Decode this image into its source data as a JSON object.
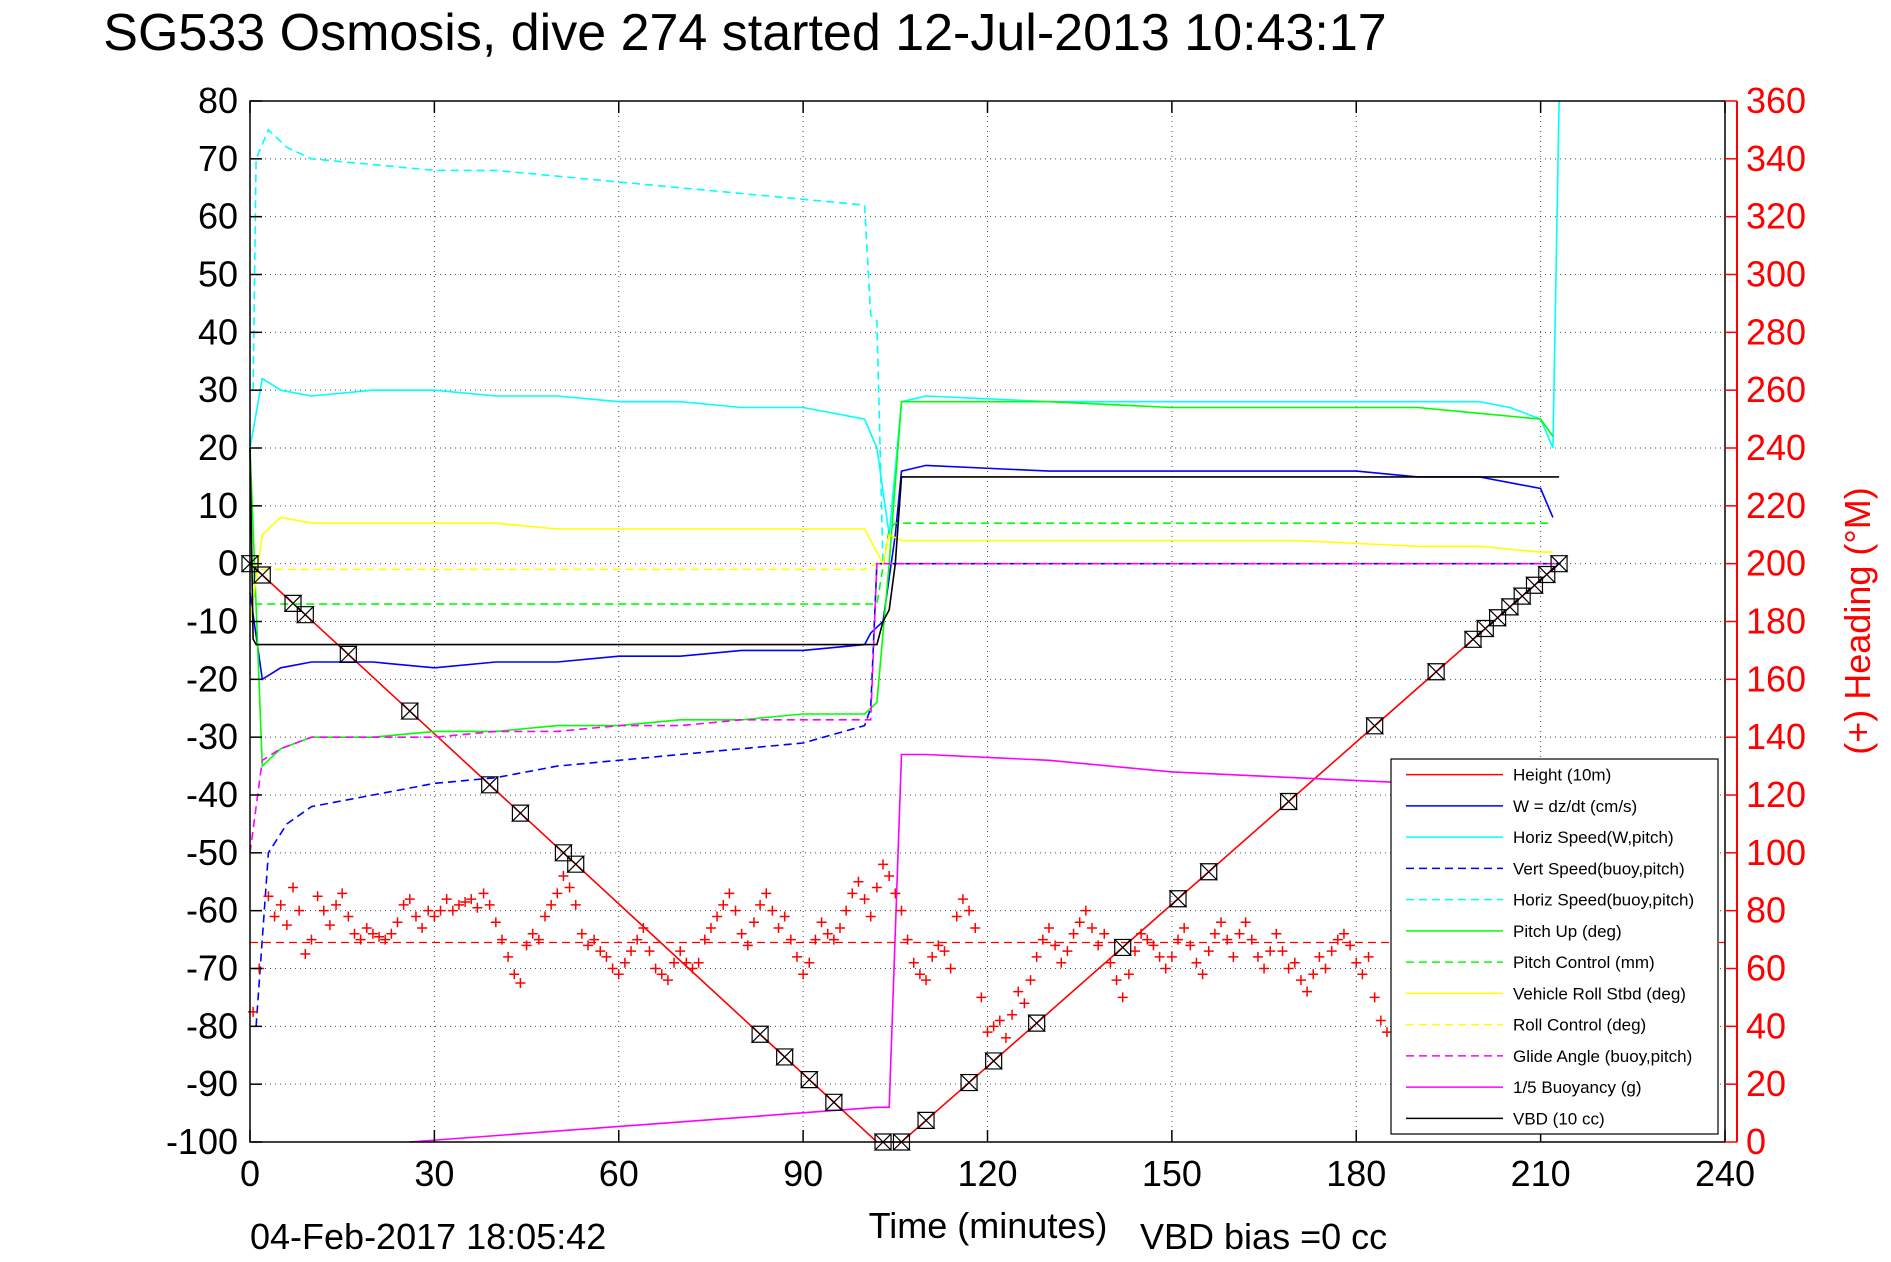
{
  "chart_data": {
    "type": "line",
    "title": "SG533 Osmosis, dive 274 started 12-Jul-2013 10:43:17",
    "xlabel": "Time (minutes)",
    "ylabel_right": "(+) Heading (°M)",
    "footer_left": "04-Feb-2017 18:05:42",
    "footer_right": "VBD bias =0 cc",
    "xlim": [
      0,
      240
    ],
    "ylim": [
      -100,
      80
    ],
    "ylim_right": [
      0,
      360
    ],
    "xticks": [
      "0",
      "30",
      "60",
      "90",
      "120",
      "150",
      "180",
      "210",
      "240"
    ],
    "yticks": [
      "80",
      "70",
      "60",
      "50",
      "40",
      "30",
      "20",
      "10",
      "0",
      "-10",
      "-20",
      "-30",
      "-40",
      "-50",
      "-60",
      "-70",
      "-80",
      "-90",
      "-100"
    ],
    "yticks_right": [
      "360",
      "340",
      "320",
      "300",
      "280",
      "260",
      "240",
      "220",
      "200",
      "180",
      "160",
      "140",
      "120",
      "100",
      "80",
      "60",
      "40",
      "20",
      "0"
    ],
    "grid": true,
    "legend_position": "bottom-right",
    "legend": [
      {
        "label": "Height (10m)",
        "color": "#ff0000",
        "dash": "solid"
      },
      {
        "label": "W = dz/dt (cm/s)",
        "color": "#0000ff",
        "dash": "solid"
      },
      {
        "label": "Horiz Speed(W,pitch)",
        "color": "#00ffff",
        "dash": "solid"
      },
      {
        "label": "Vert Speed(buoy,pitch)",
        "color": "#0000ff",
        "dash": "dashed"
      },
      {
        "label": "Horiz Speed(buoy,pitch)",
        "color": "#00ffff",
        "dash": "dashed"
      },
      {
        "label": "Pitch Up (deg)",
        "color": "#00ff00",
        "dash": "solid"
      },
      {
        "label": "Pitch Control (mm)",
        "color": "#00ff00",
        "dash": "dashed"
      },
      {
        "label": "Vehicle Roll Stbd (deg)",
        "color": "#ffff00",
        "dash": "solid"
      },
      {
        "label": "Roll Control (deg)",
        "color": "#ffff00",
        "dash": "dashed"
      },
      {
        "label": "Glide Angle (buoy,pitch)",
        "color": "#ff00ff",
        "dash": "dashed"
      },
      {
        "label": "1/5 Buoyancy (g)",
        "color": "#ff00ff",
        "dash": "solid"
      },
      {
        "label": "VBD (10 cc)",
        "color": "#000000",
        "dash": "solid"
      }
    ],
    "series": [
      {
        "name": "Height (10m)",
        "color": "#ff0000",
        "dash": "solid",
        "x": [
          0,
          102,
          106,
          213
        ],
        "y": [
          0,
          -100,
          -100,
          0
        ]
      },
      {
        "name": "W = dz/dt (cm/s)",
        "color": "#0000ff",
        "dash": "solid",
        "x": [
          0,
          2,
          5,
          10,
          20,
          30,
          40,
          50,
          60,
          70,
          80,
          90,
          100,
          101,
          103,
          105,
          106,
          110,
          130,
          150,
          170,
          180,
          190,
          200,
          205,
          210,
          212
        ],
        "y": [
          -5,
          -20,
          -18,
          -17,
          -17,
          -18,
          -17,
          -17,
          -16,
          -16,
          -15,
          -15,
          -14,
          -12,
          -10,
          5,
          16,
          17,
          16,
          16,
          16,
          16,
          15,
          15,
          14,
          13,
          8
        ]
      },
      {
        "name": "Horiz Speed(W,pitch)",
        "color": "#00ffff",
        "dash": "solid",
        "x": [
          0,
          2,
          5,
          10,
          20,
          30,
          40,
          50,
          60,
          70,
          80,
          90,
          100,
          102,
          104,
          106,
          110,
          130,
          150,
          170,
          180,
          190,
          200,
          205,
          210,
          212,
          213
        ],
        "y": [
          20,
          32,
          30,
          29,
          30,
          30,
          29,
          29,
          28,
          28,
          27,
          27,
          25,
          20,
          5,
          28,
          29,
          28,
          28,
          28,
          28,
          28,
          28,
          27,
          25,
          20,
          80
        ]
      },
      {
        "name": "Vert Speed(buoy,pitch)",
        "color": "#0000ff",
        "dash": "dashed",
        "x": [
          1,
          3,
          6,
          10,
          20,
          30,
          40,
          50,
          60,
          70,
          80,
          90,
          100,
          101,
          102,
          103,
          104,
          213
        ],
        "y": [
          -80,
          -50,
          -45,
          -42,
          -40,
          -38,
          -37,
          -35,
          -34,
          -33,
          -32,
          -31,
          -28,
          -25,
          0,
          0,
          0,
          0
        ]
      },
      {
        "name": "Horiz Speed(buoy,pitch)",
        "color": "#00ffff",
        "dash": "dashed",
        "x": [
          0.5,
          1,
          3,
          6,
          10,
          20,
          30,
          40,
          50,
          60,
          70,
          80,
          90,
          100,
          101,
          102,
          103,
          104
        ],
        "y": [
          30,
          70,
          75,
          72,
          70,
          69,
          68,
          68,
          67,
          66,
          65,
          64,
          63,
          62,
          43,
          42,
          0,
          0
        ]
      },
      {
        "name": "Pitch Up (deg)",
        "color": "#00ff00",
        "dash": "solid",
        "x": [
          0,
          2,
          5,
          10,
          20,
          30,
          40,
          50,
          60,
          70,
          80,
          90,
          100,
          102,
          104,
          106,
          110,
          130,
          150,
          170,
          190,
          200,
          210,
          212
        ],
        "y": [
          20,
          -35,
          -32,
          -30,
          -30,
          -29,
          -29,
          -28,
          -28,
          -27,
          -27,
          -26,
          -26,
          -24,
          0,
          28,
          28,
          28,
          27,
          27,
          27,
          26,
          25,
          22
        ]
      },
      {
        "name": "Pitch Control (mm)",
        "color": "#00ff00",
        "dash": "dashed",
        "x": [
          0,
          1,
          2,
          101,
          102,
          104,
          105,
          212
        ],
        "y": [
          0,
          -7,
          -7,
          -7,
          -7,
          6,
          7,
          7
        ]
      },
      {
        "name": "Vehicle Roll Stbd (deg)",
        "color": "#ffff00",
        "dash": "solid",
        "x": [
          0,
          2,
          5,
          10,
          20,
          30,
          40,
          50,
          60,
          70,
          80,
          90,
          100,
          103,
          104,
          106,
          110,
          130,
          150,
          170,
          190,
          200,
          210,
          212
        ],
        "y": [
          -10,
          5,
          8,
          7,
          7,
          7,
          7,
          6,
          6,
          6,
          6,
          6,
          6,
          0,
          5,
          4,
          4,
          4,
          4,
          4,
          3,
          3,
          2,
          2
        ]
      },
      {
        "name": "Roll Control (deg)",
        "color": "#ffff00",
        "dash": "dashed",
        "x": [
          0,
          2,
          20,
          60,
          100,
          102,
          104,
          213
        ],
        "y": [
          0,
          -1,
          -1,
          -1,
          -1,
          0,
          0,
          0
        ]
      },
      {
        "name": "Glide Angle (buoy,pitch)",
        "color": "#ff00ff",
        "dash": "dashed",
        "x": [
          0,
          2,
          5,
          10,
          20,
          30,
          40,
          50,
          60,
          70,
          80,
          90,
          100,
          101,
          102,
          103,
          213
        ],
        "y": [
          -50,
          -34,
          -32,
          -30,
          -30,
          -30,
          -29,
          -29,
          -28,
          -28,
          -27,
          -27,
          -27,
          -27,
          0,
          0,
          0
        ]
      },
      {
        "name": "1/5 Buoyancy (g)",
        "color": "#ff00ff",
        "dash": "solid",
        "x": [
          26,
          102,
          104,
          106,
          110,
          130,
          150,
          170,
          190
        ],
        "y": [
          -100,
          -94,
          -94,
          -33,
          -33,
          -34,
          -36,
          -37,
          -38
        ]
      },
      {
        "name": "VBD (10 cc)",
        "color": "#000000",
        "dash": "solid",
        "x": [
          0,
          0.5,
          1,
          2,
          101,
          102,
          103,
          104,
          105,
          106,
          212,
          213
        ],
        "y": [
          20,
          -13,
          -14,
          -14,
          -14,
          -14,
          -10,
          -8,
          0,
          15,
          15,
          15
        ]
      }
    ],
    "heading_mean": 69,
    "heading_scatter": {
      "name": "(+) Heading",
      "color": "#ff0000",
      "x": [
        0.5,
        1.5,
        3,
        4,
        5,
        6,
        7,
        8,
        9,
        10,
        11,
        12,
        13,
        14,
        15,
        16,
        17,
        18,
        19,
        20,
        21,
        22,
        23,
        24,
        25,
        26,
        27,
        28,
        29,
        30,
        31,
        32,
        33,
        34,
        35,
        36,
        37,
        38,
        39,
        40,
        41,
        42,
        43,
        44,
        45,
        46,
        47,
        48,
        49,
        50,
        51,
        52,
        53,
        54,
        55,
        56,
        57,
        58,
        59,
        60,
        61,
        62,
        63,
        64,
        65,
        66,
        67,
        68,
        69,
        70,
        71,
        72,
        73,
        74,
        75,
        76,
        77,
        78,
        79,
        80,
        81,
        82,
        83,
        84,
        85,
        86,
        87,
        88,
        89,
        90,
        91,
        92,
        93,
        94,
        95,
        96,
        97,
        98,
        99,
        100,
        101,
        102,
        103,
        104,
        105,
        106,
        107,
        108,
        109,
        110,
        111,
        112,
        113,
        114,
        115,
        116,
        117,
        118,
        119,
        120,
        121,
        122,
        123,
        124,
        125,
        126,
        127,
        128,
        129,
        130,
        131,
        132,
        133,
        134,
        135,
        136,
        137,
        138,
        139,
        140,
        141,
        142,
        143,
        144,
        145,
        146,
        147,
        148,
        149,
        150,
        151,
        152,
        153,
        154,
        155,
        156,
        157,
        158,
        159,
        160,
        161,
        162,
        163,
        164,
        165,
        166,
        167,
        168,
        169,
        170,
        171,
        172,
        173,
        174,
        175,
        176,
        177,
        178,
        179,
        180,
        181,
        182,
        183,
        184,
        185
      ],
      "y": [
        45,
        60,
        85,
        78,
        82,
        75,
        88,
        80,
        65,
        70,
        85,
        80,
        75,
        82,
        86,
        78,
        72,
        70,
        74,
        72,
        71,
        70,
        72,
        76,
        82,
        84,
        78,
        74,
        80,
        78,
        80,
        84,
        80,
        82,
        83,
        84,
        81,
        86,
        82,
        76,
        70,
        64,
        58,
        55,
        68,
        72,
        70,
        78,
        82,
        86,
        92,
        88,
        82,
        72,
        68,
        70,
        66,
        64,
        60,
        58,
        62,
        66,
        70,
        74,
        66,
        60,
        58,
        56,
        62,
        66,
        62,
        60,
        62,
        70,
        74,
        78,
        82,
        86,
        80,
        72,
        68,
        76,
        82,
        86,
        80,
        74,
        78,
        70,
        64,
        58,
        62,
        70,
        76,
        72,
        70,
        74,
        80,
        86,
        90,
        84,
        78,
        88,
        96,
        92,
        86,
        80,
        70,
        62,
        58,
        56,
        64,
        68,
        66,
        60,
        78,
        84,
        80,
        74,
        50,
        38,
        40,
        42,
        36,
        44,
        52,
        48,
        56,
        64,
        70,
        74,
        68,
        62,
        66,
        72,
        76,
        80,
        74,
        68,
        72,
        62,
        56,
        50,
        58,
        66,
        72,
        70,
        68,
        64,
        60,
        64,
        70,
        74,
        68,
        62,
        58,
        66,
        72,
        76,
        70,
        64,
        72,
        76,
        70,
        64,
        60,
        66,
        72,
        66,
        60,
        62,
        56,
        52,
        58,
        64,
        60,
        66,
        70,
        72,
        68,
        62,
        58,
        64,
        50,
        42,
        38
      ]
    }
  }
}
